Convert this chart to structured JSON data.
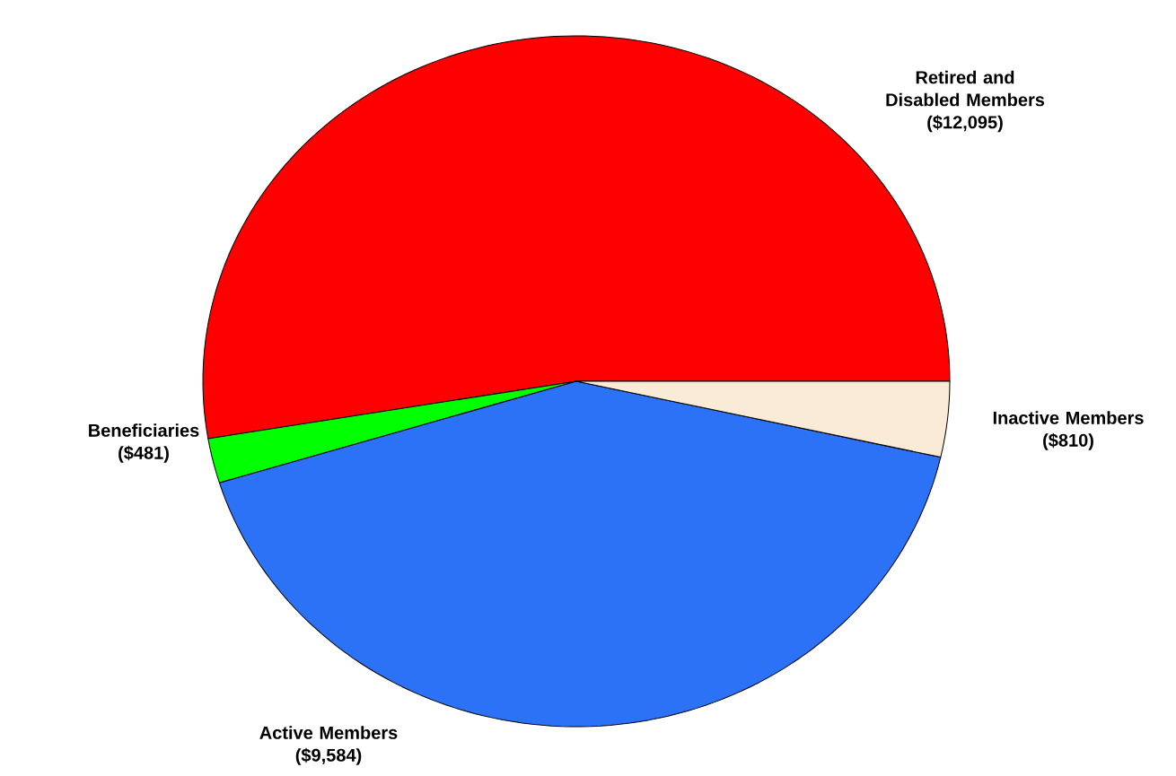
{
  "chart_data": {
    "type": "pie",
    "categories": [
      "Retired and Disabled Members",
      "Beneficiaries",
      "Active Members",
      "Inactive Members"
    ],
    "values": [
      12095,
      481,
      9584,
      810
    ],
    "colors": [
      "#ff0000",
      "#00ff00",
      "#2b72f7",
      "#faebd7"
    ],
    "value_labels": [
      "($12,095)",
      "($481)",
      "($9,584)",
      "($810)"
    ]
  }
}
